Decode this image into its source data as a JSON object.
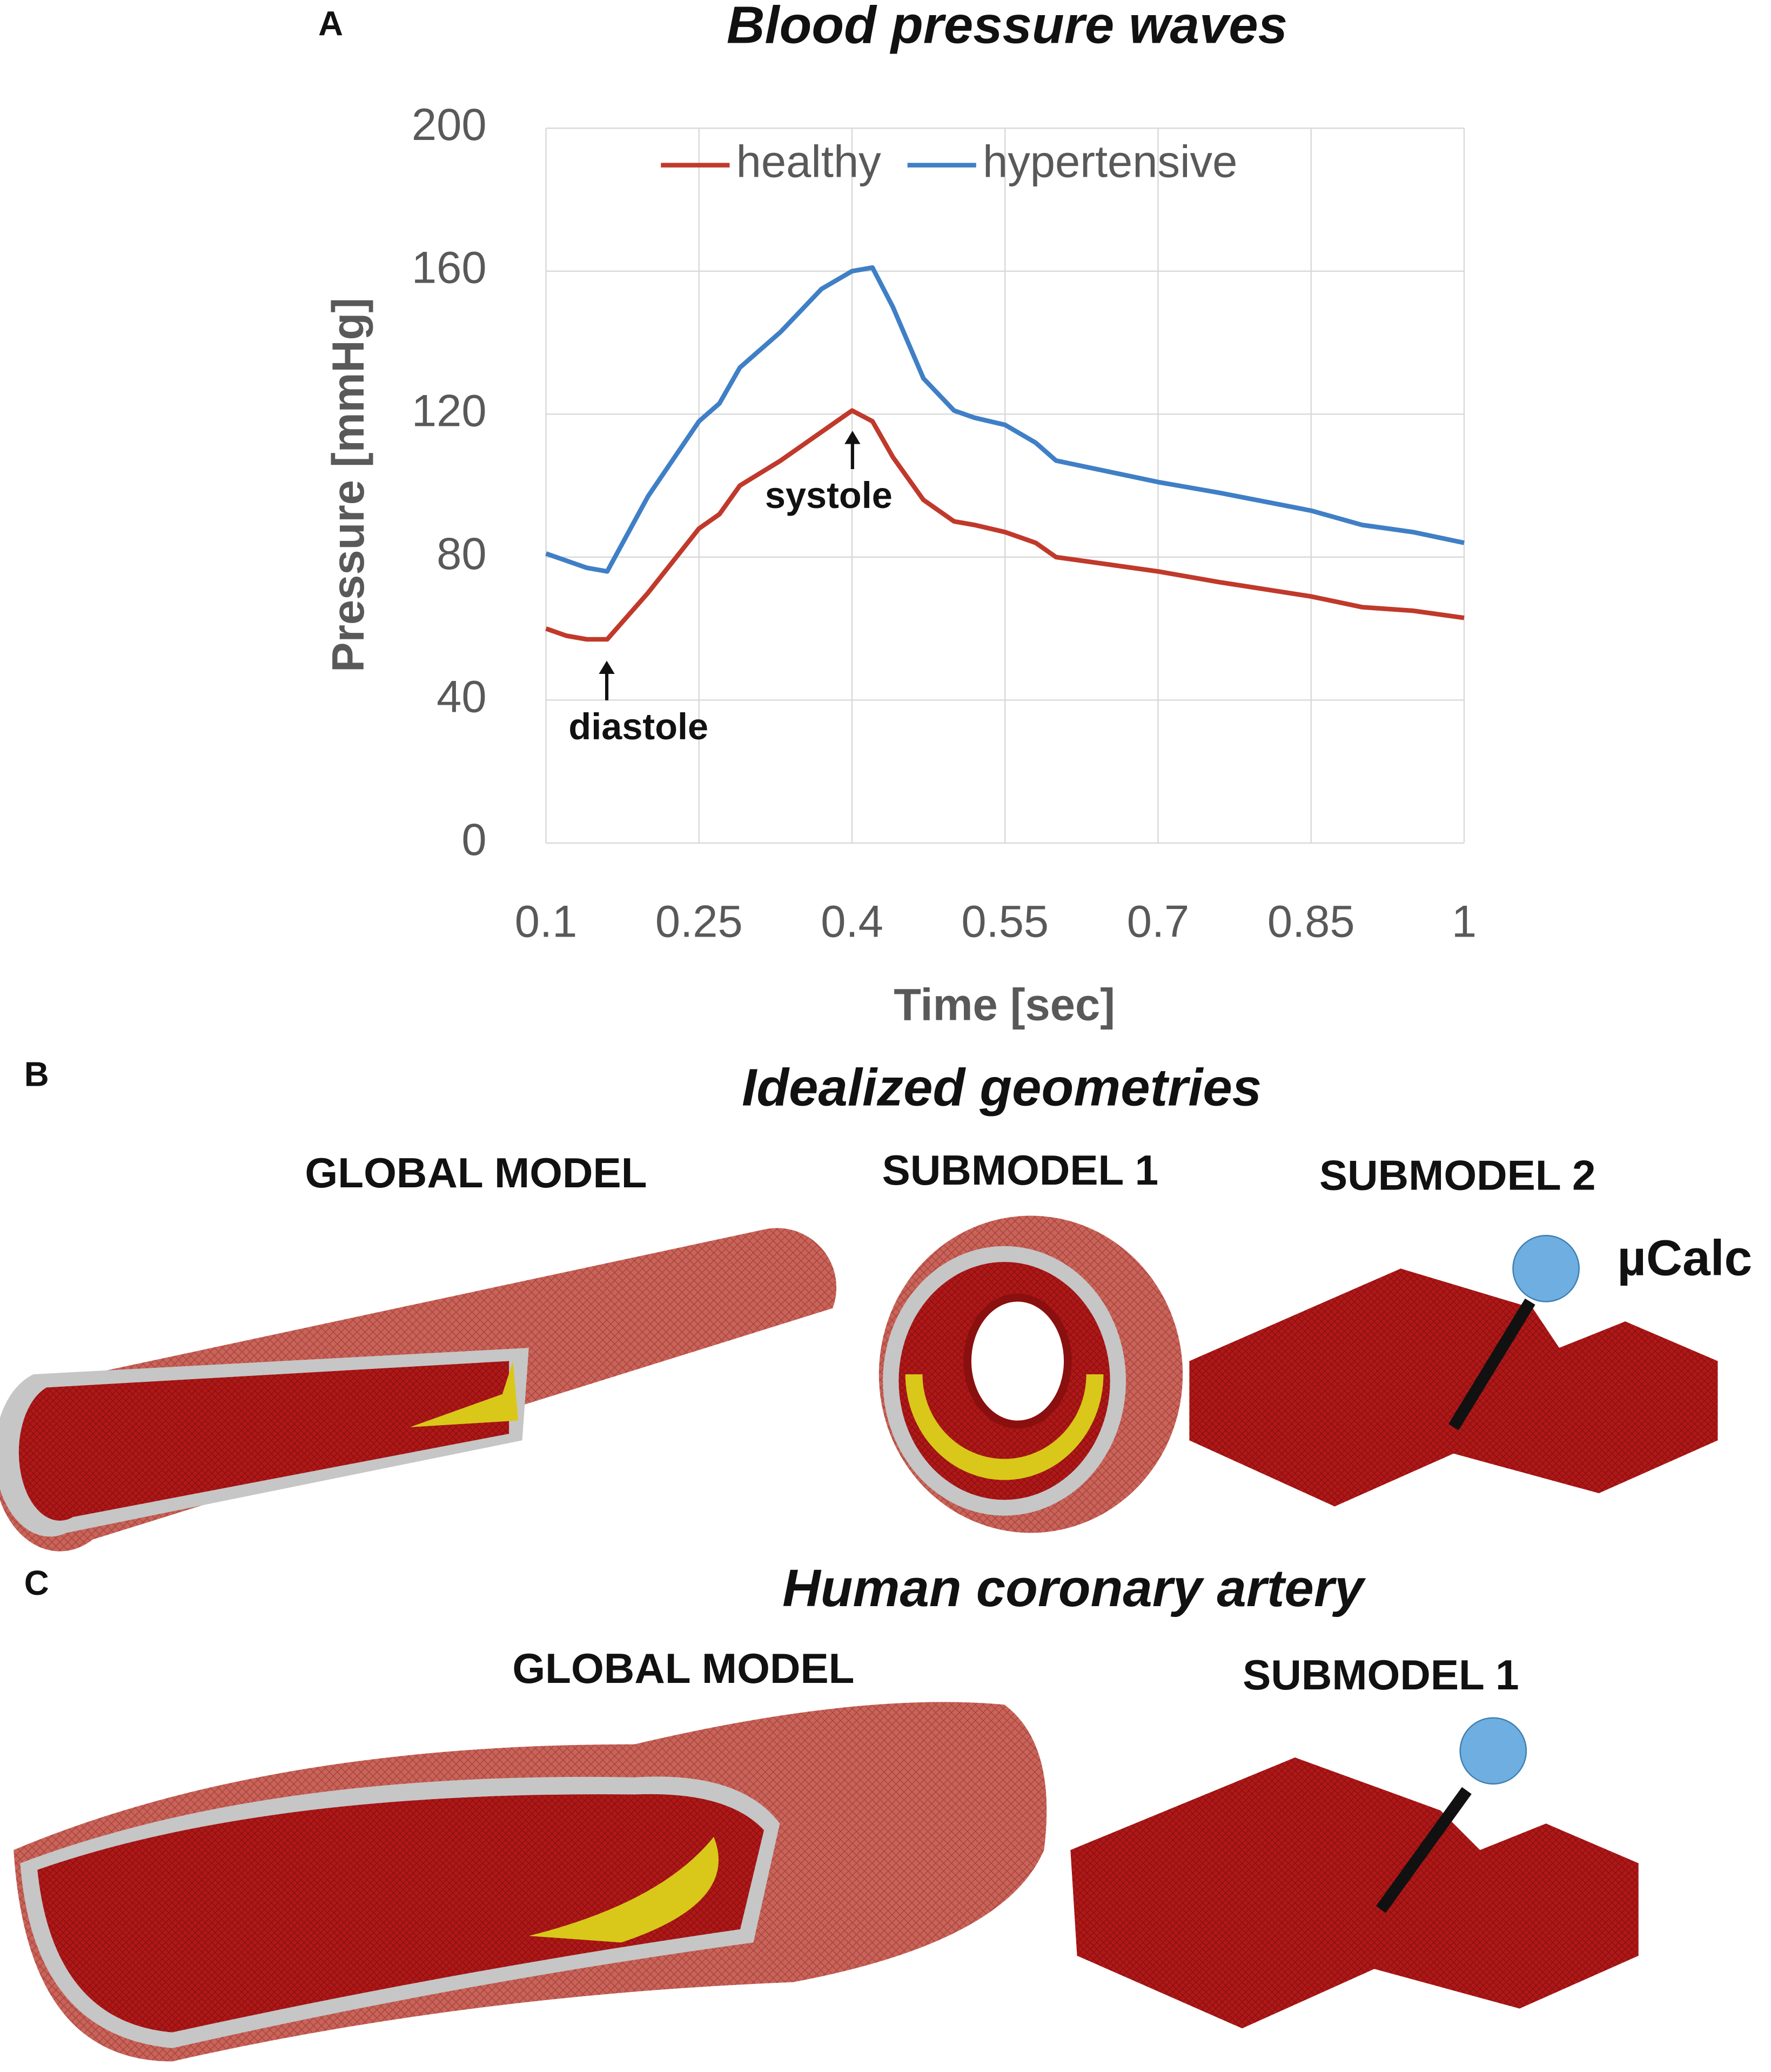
{
  "chart_data": {
    "type": "line",
    "panel_label": "A",
    "title": "Blood pressure waves",
    "x_label": "Time [sec]",
    "y_label": "Pressure [mmHg]",
    "x": [
      0.1,
      0.12,
      0.14,
      0.16,
      0.2,
      0.25,
      0.27,
      0.29,
      0.33,
      0.37,
      0.4,
      0.42,
      0.44,
      0.47,
      0.5,
      0.52,
      0.55,
      0.58,
      0.6,
      0.7,
      0.76,
      0.85,
      0.9,
      0.95,
      1
    ],
    "series": [
      {
        "name": "healthy",
        "color": "#c0392b",
        "values": [
          60,
          58,
          57,
          57,
          70,
          88,
          92,
          100,
          107,
          115,
          121,
          118,
          108,
          96,
          90,
          89,
          87,
          84,
          80,
          76,
          73,
          69,
          66,
          65,
          63
        ]
      },
      {
        "name": "hypertensive",
        "color": "#3f7fc6",
        "values": [
          81,
          79,
          77,
          76,
          97,
          118,
          123,
          133,
          143,
          155,
          160,
          161,
          150,
          130,
          121,
          119,
          117,
          112,
          107,
          101,
          98,
          93,
          89,
          87,
          84
        ]
      }
    ],
    "xlim": [
      0.1,
      1
    ],
    "xticks": [
      0.1,
      0.25,
      0.4,
      0.55,
      0.7,
      0.85,
      1
    ],
    "ylim": [
      0,
      200
    ],
    "yticks": [
      0,
      40,
      80,
      120,
      160,
      200
    ],
    "grid": true,
    "legend": "top",
    "annotations": [
      "diastole",
      "systole"
    ]
  },
  "panels": [
    {
      "label": "B",
      "title": "Idealized geometries",
      "captions": [
        "GLOBAL MODEL",
        "SUBMODEL 1",
        "SUBMODEL 2",
        "µCalc"
      ]
    },
    {
      "label": "C",
      "title": "Human coronary  artery",
      "captions": [
        "GLOBAL MODEL",
        "SUBMODEL 1"
      ]
    }
  ]
}
